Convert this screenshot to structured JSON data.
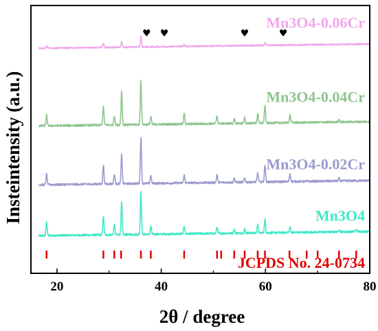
{
  "chart_data": {
    "type": "line",
    "xlabel": "2θ / degree",
    "ylabel": "Insteintensity (a.u.)",
    "xlim": [
      15,
      80
    ],
    "xticks": [
      20,
      40,
      60,
      80
    ],
    "grid": false,
    "series": [
      {
        "name": "Mn3O4",
        "color": "#3fe8c8",
        "baseline": 0.14,
        "noise": 0.004,
        "peaks": [
          [
            18.0,
            0.05
          ],
          [
            28.9,
            0.07
          ],
          [
            31.0,
            0.04
          ],
          [
            32.4,
            0.12
          ],
          [
            36.1,
            0.16
          ],
          [
            38.0,
            0.03
          ],
          [
            44.4,
            0.03
          ],
          [
            50.7,
            0.025
          ],
          [
            54.0,
            0.015
          ],
          [
            56.0,
            0.015
          ],
          [
            58.5,
            0.03
          ],
          [
            59.9,
            0.05
          ],
          [
            64.7,
            0.02
          ],
          [
            74.1,
            0.01
          ],
          [
            77.4,
            0.008
          ]
        ]
      },
      {
        "name": "Mn3O4-0.02Cr",
        "color": "#9b9bcf",
        "baseline": 0.33,
        "noise": 0.004,
        "peaks": [
          [
            18.0,
            0.04
          ],
          [
            28.9,
            0.07
          ],
          [
            31.0,
            0.035
          ],
          [
            32.4,
            0.11
          ],
          [
            36.1,
            0.175
          ],
          [
            38.0,
            0.03
          ],
          [
            44.4,
            0.03
          ],
          [
            50.7,
            0.03
          ],
          [
            54.0,
            0.015
          ],
          [
            56.0,
            0.015
          ],
          [
            58.5,
            0.035
          ],
          [
            59.9,
            0.065
          ],
          [
            64.7,
            0.03
          ],
          [
            74.1,
            0.01
          ]
        ]
      },
      {
        "name": "Mn3O4-0.04Cr",
        "color": "#8fc58f",
        "baseline": 0.55,
        "noise": 0.004,
        "peaks": [
          [
            18.0,
            0.04
          ],
          [
            28.9,
            0.07
          ],
          [
            31.0,
            0.035
          ],
          [
            32.4,
            0.13
          ],
          [
            36.1,
            0.165
          ],
          [
            38.0,
            0.03
          ],
          [
            44.4,
            0.04
          ],
          [
            50.7,
            0.03
          ],
          [
            54.0,
            0.015
          ],
          [
            56.0,
            0.02
          ],
          [
            58.5,
            0.035
          ],
          [
            59.9,
            0.065
          ],
          [
            64.7,
            0.03
          ],
          [
            74.1,
            0.01
          ]
        ]
      },
      {
        "name": "Mn3O4-0.06Cr",
        "color": "#f0a7ec",
        "baseline": 0.84,
        "noise": 0.003,
        "peaks": [
          [
            18.0,
            0.008
          ],
          [
            28.9,
            0.015
          ],
          [
            32.4,
            0.02
          ],
          [
            36.1,
            0.04
          ],
          [
            44.4,
            0.008
          ],
          [
            59.9,
            0.012
          ]
        ]
      }
    ],
    "markers": {
      "symbol": "♥",
      "color": "#000000",
      "series": "Mn3O4-0.06Cr",
      "x": [
        37.2,
        40.6,
        56.0,
        63.4
      ],
      "y": 0.885
    },
    "reference": {
      "label": "JCPDS No. 24-0734",
      "color": "#e00000",
      "positions": [
        18.0,
        28.9,
        31.0,
        32.3,
        36.1,
        38.0,
        44.4,
        50.7,
        51.5,
        54.0,
        56.0,
        58.5,
        59.9,
        64.6,
        67.9,
        70.0,
        74.1,
        77.4
      ],
      "y_range": [
        0.055,
        0.085
      ]
    }
  }
}
